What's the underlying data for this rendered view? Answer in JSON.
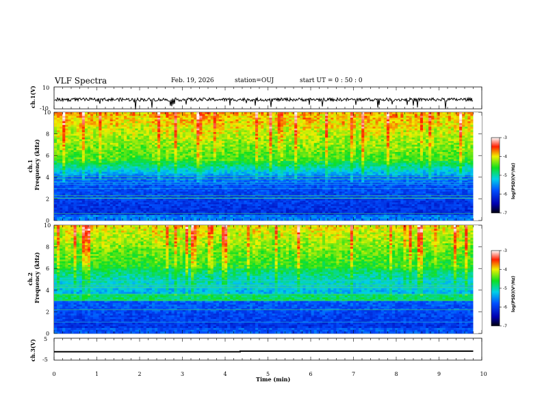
{
  "header": {
    "title": "VLF Spectra",
    "date": "Feb. 19, 2026",
    "station": "station=OUJ",
    "start": "start  UT =   0 : 50 : 0"
  },
  "chart_data": {
    "type": "heatmap",
    "title": "VLF Spectra",
    "xlabel": "Time  (min)",
    "xlim": [
      0,
      10
    ],
    "x_ticks": [
      "0",
      "1",
      "2",
      "3",
      "4",
      "5",
      "6",
      "7",
      "8",
      "9",
      "10"
    ],
    "panels": [
      {
        "id": "ch1-waveform",
        "type": "line",
        "ylabel": "ch.1(V)",
        "ylim": [
          -10,
          10
        ],
        "y_ticks": [
          "10",
          "-10"
        ]
      },
      {
        "id": "ch1-spectrogram",
        "type": "heatmap",
        "ylabel_top": "ch.1",
        "ylabel": "Frequency  (kHz)",
        "ylim": [
          0,
          10
        ],
        "y_ticks": [
          "0",
          "2",
          "4",
          "6",
          "8",
          "10"
        ],
        "colorbar": {
          "label": "log(PSD)(V²/Hz)",
          "range": [
            -7,
            -3
          ],
          "ticks": [
            "-3",
            "-4",
            "-5",
            "-6",
            "-7"
          ]
        }
      },
      {
        "id": "ch2-spectrogram",
        "type": "heatmap",
        "ylabel_top": "ch.2",
        "ylabel": "Frequency  (kHz)",
        "ylim": [
          0,
          10
        ],
        "y_ticks": [
          "0",
          "2",
          "4",
          "6",
          "8",
          "10"
        ],
        "colorbar": {
          "label": "log(PSD)(V²/Hz)",
          "range": [
            -7,
            -3
          ],
          "ticks": [
            "-3",
            "-4",
            "-5",
            "-6",
            "-7"
          ]
        }
      },
      {
        "id": "ch3-trace",
        "type": "line",
        "ylabel": "ch.3(V)",
        "ylim": [
          -5,
          5
        ],
        "y_ticks": [
          "5",
          "-5"
        ],
        "step": {
          "x": [
            0,
            4.35,
            4.35,
            9.8
          ],
          "y": [
            -1.2,
            -1.2,
            -0.9,
            -0.9
          ]
        }
      }
    ],
    "data_end_min": 9.8
  }
}
